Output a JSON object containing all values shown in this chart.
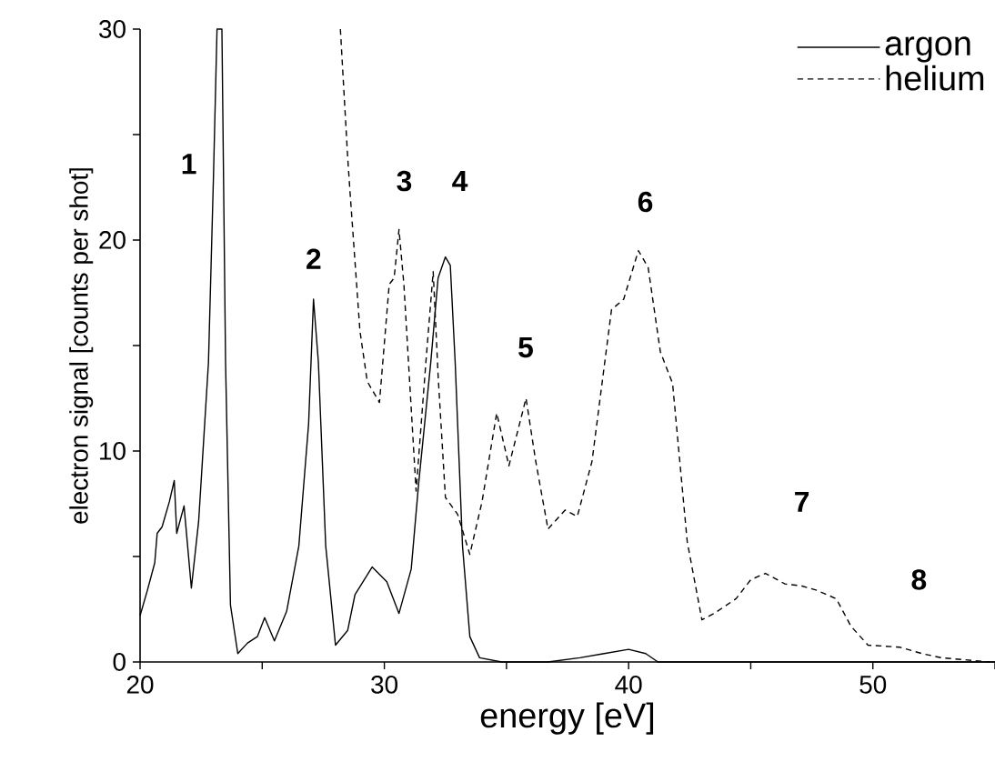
{
  "chart_data": {
    "type": "line",
    "xlabel": "energy [eV]",
    "ylabel": "electron signal [counts per shot]",
    "xlim": [
      20,
      55
    ],
    "ylim": [
      0,
      30
    ],
    "xticks": [
      20,
      {
        "value": 25,
        "label": null
      },
      30,
      {
        "value": 35,
        "label": null
      },
      40,
      {
        "value": 45,
        "label": null
      },
      50,
      {
        "value": 55,
        "label": null
      }
    ],
    "yticks": [
      0,
      {
        "value": 5,
        "label": null
      },
      10,
      {
        "value": 15,
        "label": null
      },
      20,
      {
        "value": 25,
        "label": null
      },
      30
    ],
    "legend": "top right",
    "marker": "none",
    "series": [
      {
        "name": "argon",
        "color": "#000000",
        "line_style": "solid",
        "x": [
          20,
          20.3,
          20.6,
          20.7,
          20.9,
          21.2,
          21.4,
          21.5,
          21.8,
          22.1,
          22.4,
          22.8,
          23.0,
          23.15,
          23.35,
          23.5,
          23.7,
          24.0,
          24.4,
          24.8,
          25.1,
          25.5,
          26.0,
          26.5,
          26.9,
          27.1,
          27.3,
          27.6,
          28.0,
          28.5,
          28.8,
          29.5,
          30.1,
          30.6,
          31.1,
          31.4,
          31.9,
          32.2,
          32.5,
          32.7,
          32.9,
          33.2,
          33.5,
          33.9,
          34.8,
          36.7,
          38.0,
          39.0,
          40.0,
          40.7,
          41.2,
          55
        ],
        "values": [
          2.2,
          3.4,
          4.7,
          6.1,
          6.4,
          7.6,
          8.6,
          6.1,
          7.4,
          3.5,
          6.7,
          14.2,
          22.8,
          30,
          30,
          14.2,
          2.7,
          0.4,
          0.9,
          1.2,
          2.1,
          1.0,
          2.4,
          5.5,
          11.3,
          17.2,
          14.2,
          5.5,
          0.8,
          1.5,
          3.2,
          4.5,
          3.8,
          2.3,
          4.4,
          8.4,
          14.2,
          18.2,
          19.2,
          18.8,
          14.2,
          5.5,
          1.2,
          0.2,
          0,
          0,
          0.2,
          0.4,
          0.6,
          0.4,
          0,
          0
        ]
      },
      {
        "name": "helium",
        "color": "#000000",
        "line_style": "dashed",
        "x": [
          28.2,
          28.5,
          28.6,
          29.0,
          29.3,
          29.8,
          30.2,
          30.4,
          30.6,
          30.8,
          31.3,
          31.7,
          32.0,
          32.2,
          32.5,
          33.0,
          33.5,
          34.0,
          34.6,
          35.1,
          35.8,
          36.2,
          36.7,
          37.4,
          37.9,
          38.5,
          39.3,
          39.8,
          40.4,
          40.8,
          41.3,
          41.8,
          42.4,
          43.0,
          43.5,
          44.4,
          45.0,
          45.6,
          46.4,
          47.1,
          47.7,
          48.5,
          49.1,
          49.8,
          51.1,
          52.0,
          52.8,
          54.8
        ],
        "values": [
          30,
          23.9,
          22.2,
          15.7,
          13.3,
          12.3,
          17.9,
          18.2,
          20.5,
          17.9,
          8.1,
          14.2,
          18.5,
          13.6,
          7.8,
          7.0,
          5.1,
          7.6,
          11.8,
          9.3,
          12.5,
          9.5,
          6.3,
          7.2,
          6.9,
          9.5,
          16.7,
          17.2,
          19.5,
          18.7,
          14.7,
          13.2,
          5.7,
          2.0,
          2.3,
          3.0,
          3.9,
          4.2,
          3.7,
          3.6,
          3.4,
          3.0,
          1.7,
          0.8,
          0.7,
          0.4,
          0.2,
          0
        ]
      }
    ],
    "annotations": [
      "1",
      "2",
      "3",
      "4",
      "5",
      "6",
      "7",
      "8"
    ]
  }
}
